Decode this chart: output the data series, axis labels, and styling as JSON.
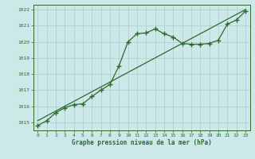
{
  "line1_x": [
    0,
    1,
    2,
    3,
    4,
    5,
    6,
    7,
    8,
    9,
    10,
    11,
    12,
    13,
    14,
    15,
    16,
    17,
    18,
    19,
    20,
    21,
    22,
    23
  ],
  "line1_y": [
    1014.8,
    1015.1,
    1015.6,
    1015.9,
    1016.1,
    1016.15,
    1016.6,
    1017.0,
    1017.35,
    1018.5,
    1020.0,
    1020.5,
    1020.55,
    1020.8,
    1020.5,
    1020.3,
    1019.9,
    1019.85,
    1019.85,
    1019.9,
    1020.1,
    1021.1,
    1021.35,
    1021.9
  ],
  "line2_x": [
    0,
    23
  ],
  "line2_y": [
    1015.1,
    1022.0
  ],
  "xlim": [
    -0.5,
    23.5
  ],
  "ylim": [
    1014.5,
    1022.3
  ],
  "yticks": [
    1015,
    1016,
    1017,
    1018,
    1019,
    1020,
    1021,
    1022
  ],
  "xticks": [
    0,
    1,
    2,
    3,
    4,
    5,
    6,
    7,
    8,
    9,
    10,
    11,
    12,
    13,
    14,
    15,
    16,
    17,
    18,
    19,
    20,
    21,
    22,
    23
  ],
  "xlabel": "Graphe pression niveau de la mer (hPa)",
  "line_color": "#2d6a2d",
  "bg_color": "#cce8e8",
  "grid_color": "#aacece",
  "marker": "+",
  "marker_size": 4,
  "linewidth": 0.9
}
